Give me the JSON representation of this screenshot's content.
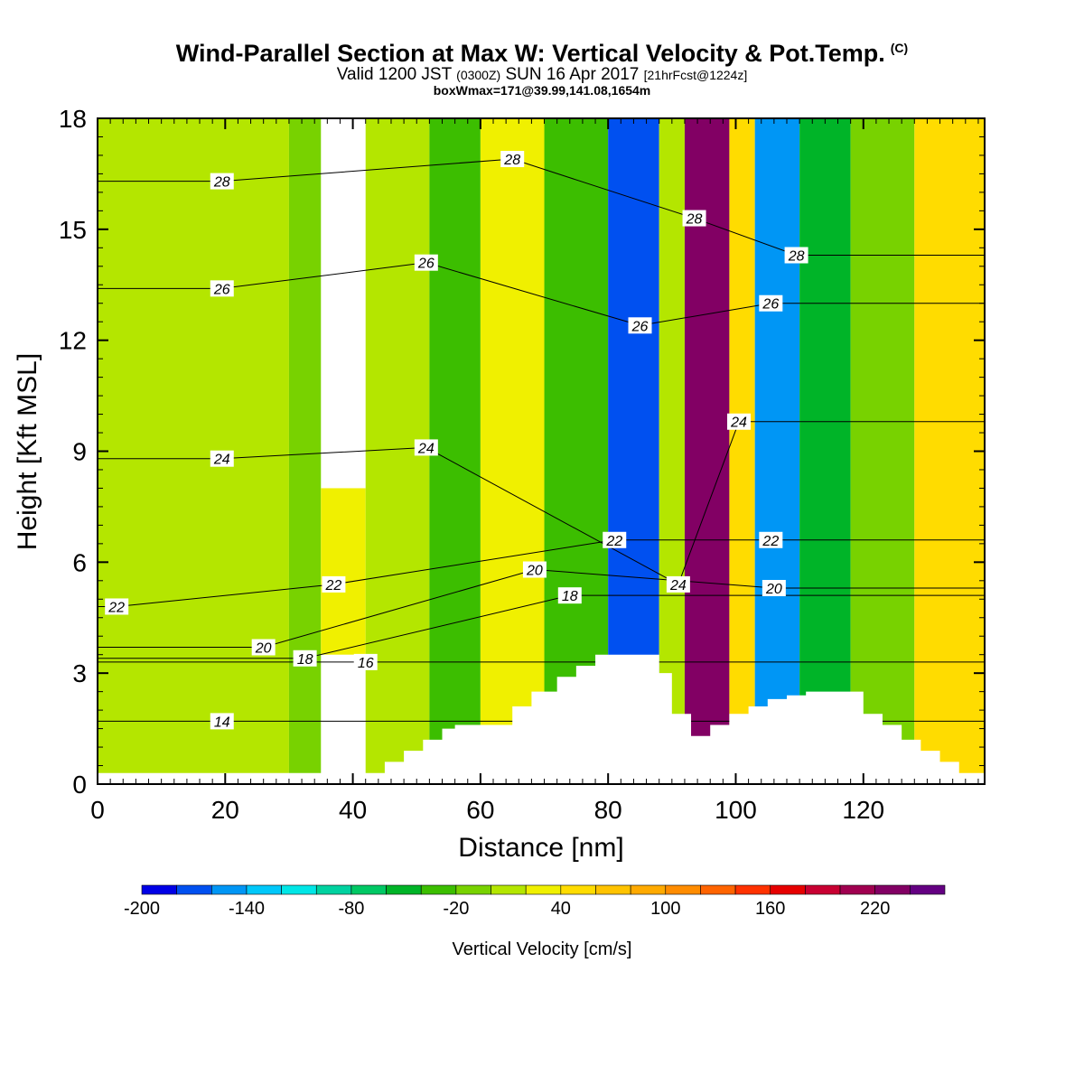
{
  "header": {
    "title": "Wind-Parallel Section at Max W: Vertical Velocity & Pot.Temp.",
    "copyright": "(C)",
    "valid_a": "Valid 1200 JST",
    "valid_zulu": "(0300Z)",
    "valid_b": "SUN 16 Apr 2017",
    "forecast": "[21hrFcst@1224z]",
    "box_info": "boxWmax=171@39.99,141.08,1654m"
  },
  "chart_data": {
    "type": "heatmap",
    "xlabel": "Distance [nm]",
    "ylabel": "Height [Kft MSL]",
    "xlim": [
      0,
      139
    ],
    "ylim": [
      0,
      18
    ],
    "x_ticks": [
      0,
      20,
      40,
      60,
      80,
      100,
      120
    ],
    "y_ticks": [
      0,
      3,
      6,
      9,
      12,
      15,
      18
    ],
    "colorbar": {
      "label": "Vertical Velocity [cm/s]",
      "levels": [
        -200,
        -180,
        -160,
        -140,
        -120,
        -100,
        -80,
        -60,
        -40,
        -20,
        0,
        20,
        40,
        60,
        80,
        100,
        120,
        140,
        160,
        180,
        200,
        220,
        240,
        260
      ],
      "tick_labels": [
        "-200",
        "-140",
        "-80",
        "-20",
        "40",
        "100",
        "160",
        "220"
      ],
      "tick_values": [
        -200,
        -140,
        -80,
        -20,
        40,
        100,
        160,
        220
      ],
      "colors": [
        "#0000e6",
        "#0050f0",
        "#0096f5",
        "#00c8fa",
        "#00e6e6",
        "#00d2a0",
        "#00c864",
        "#00b428",
        "#3cbe00",
        "#78d200",
        "#b4e600",
        "#f0f000",
        "#ffdc00",
        "#ffc300",
        "#ffaa00",
        "#ff8c00",
        "#ff6400",
        "#ff3200",
        "#e60000",
        "#c80032",
        "#a00050",
        "#820064",
        "#640082"
      ]
    },
    "wind_parallel_velocity_columns": [
      {
        "x_range": [
          0,
          30
        ],
        "w": 5
      },
      {
        "x_range": [
          30,
          35
        ],
        "w": -10
      },
      {
        "x_range": [
          35,
          42
        ],
        "w": 25,
        "z_range": [
          3.5,
          8
        ]
      },
      {
        "x_range": [
          42,
          52
        ],
        "w": 5
      },
      {
        "x_range": [
          52,
          60
        ],
        "w": -25
      },
      {
        "x_range": [
          60,
          70
        ],
        "w": 30
      },
      {
        "x_range": [
          70,
          80
        ],
        "w": -35
      },
      {
        "x_range": [
          80,
          88
        ],
        "w": -180
      },
      {
        "x_range": [
          88,
          92
        ],
        "w": 10
      },
      {
        "x_range": [
          92,
          99
        ],
        "w": 230
      },
      {
        "x_range": [
          99,
          103
        ],
        "w": 40
      },
      {
        "x_range": [
          103,
          110
        ],
        "w": -150
      },
      {
        "x_range": [
          110,
          118
        ],
        "w": -60
      },
      {
        "x_range": [
          118,
          128
        ],
        "w": -10
      },
      {
        "x_range": [
          128,
          139
        ],
        "w": 45
      }
    ],
    "terrain_kft": {
      "x": [
        0,
        45,
        48,
        51,
        54,
        56,
        60,
        65,
        68,
        72,
        75,
        78,
        81,
        84,
        87,
        88,
        90,
        93,
        96,
        99,
        102,
        105,
        108,
        111,
        114,
        117,
        120,
        123,
        126,
        129,
        132,
        135,
        139
      ],
      "z": [
        0.3,
        0.6,
        0.9,
        1.2,
        1.5,
        1.6,
        1.6,
        2.1,
        2.5,
        2.9,
        3.2,
        3.5,
        3.5,
        3.5,
        3.5,
        3.0,
        1.9,
        1.3,
        1.6,
        1.9,
        2.1,
        2.3,
        2.4,
        2.5,
        2.5,
        2.5,
        1.9,
        1.6,
        1.2,
        0.9,
        0.6,
        0.3,
        0.3
      ]
    },
    "pot_temp_contours": [
      {
        "value": 14,
        "label_at": [
          19.5,
          1.7
        ]
      },
      {
        "value": 16,
        "label_at": [
          42,
          3.3
        ]
      },
      {
        "value": 18,
        "label_at": [
          32.5,
          3.4
        ]
      },
      {
        "value": 18,
        "label_at": [
          74,
          5.1
        ]
      },
      {
        "value": 20,
        "label_at": [
          26,
          3.7
        ]
      },
      {
        "value": 20,
        "label_at": [
          68.5,
          5.8
        ]
      },
      {
        "value": 20,
        "label_at": [
          106,
          5.3
        ]
      },
      {
        "value": 22,
        "label_at": [
          3,
          4.8
        ]
      },
      {
        "value": 22,
        "label_at": [
          37,
          5.4
        ]
      },
      {
        "value": 22,
        "label_at": [
          81,
          6.6
        ]
      },
      {
        "value": 22,
        "label_at": [
          105.5,
          6.6
        ]
      },
      {
        "value": 24,
        "label_at": [
          19.5,
          8.8
        ]
      },
      {
        "value": 24,
        "label_at": [
          51.5,
          9.1
        ]
      },
      {
        "value": 24,
        "label_at": [
          91,
          5.4
        ]
      },
      {
        "value": 24,
        "label_at": [
          100.5,
          9.8
        ]
      },
      {
        "value": 26,
        "label_at": [
          19.5,
          13.4
        ]
      },
      {
        "value": 26,
        "label_at": [
          51.5,
          14.1
        ]
      },
      {
        "value": 26,
        "label_at": [
          85,
          12.4
        ]
      },
      {
        "value": 26,
        "label_at": [
          105.5,
          13.0
        ]
      },
      {
        "value": 28,
        "label_at": [
          19.5,
          16.3
        ]
      },
      {
        "value": 28,
        "label_at": [
          65,
          16.9
        ]
      },
      {
        "value": 28,
        "label_at": [
          93.5,
          15.3
        ]
      },
      {
        "value": 28,
        "label_at": [
          109.5,
          14.3
        ]
      }
    ]
  }
}
